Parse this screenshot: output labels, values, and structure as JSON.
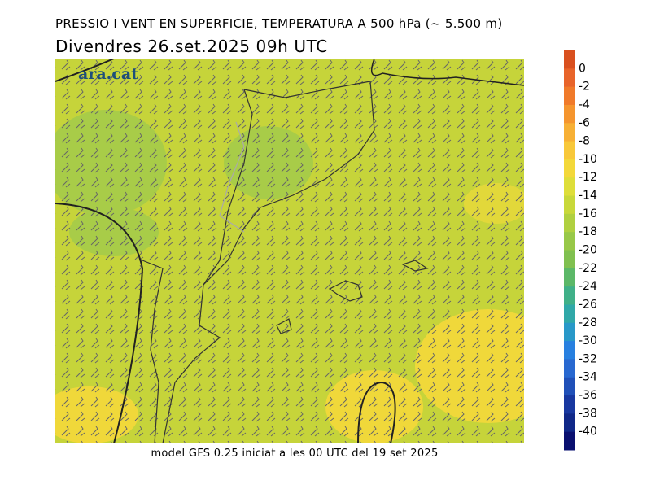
{
  "header": {
    "title": "PRESSIO I VENT EN SUPERFICIE, TEMPERATURA A 500 hPa (~ 5.500 m)",
    "subtitle": "Divendres  26.set.2025 09h UTC"
  },
  "logo": "ara.cat",
  "footer": "model GFS 0.25 iniciat a les 00 UTC del 19 set 2025",
  "colorbar": {
    "labels": [
      0,
      -2,
      -4,
      -6,
      -8,
      -10,
      -12,
      -14,
      -16,
      -18,
      -20,
      -22,
      -24,
      -26,
      -28,
      -30,
      -32,
      -34,
      -36,
      -38,
      -40
    ],
    "colors": [
      "#d9501f",
      "#e8642a",
      "#f07a2a",
      "#f5952e",
      "#f7b035",
      "#f8c83a",
      "#f3d83a",
      "#dede3a",
      "#c8d83a",
      "#b0d040",
      "#98c848",
      "#80c050",
      "#5cb868",
      "#40b088",
      "#30a8a8",
      "#2898c8",
      "#2880e0",
      "#2868d0",
      "#2050b8",
      "#1838a0",
      "#102888",
      "#0a1070"
    ]
  }
}
